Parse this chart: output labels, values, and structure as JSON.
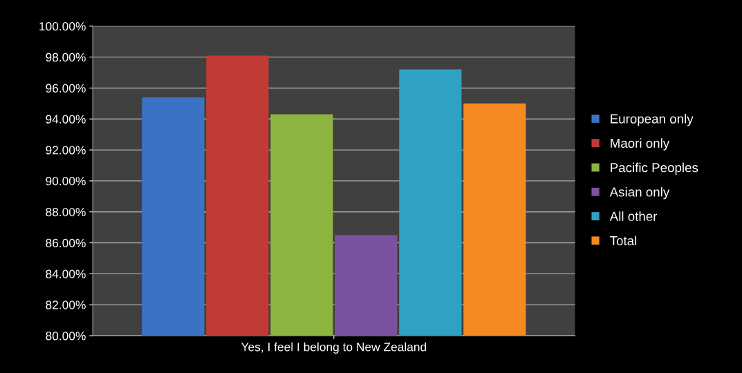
{
  "chart_data": {
    "type": "bar",
    "categories": [
      "Yes, I feel I belong to New Zealand"
    ],
    "series": [
      {
        "name": "European only",
        "color": "#3b73c4",
        "values": [
          95.4
        ]
      },
      {
        "name": "Maori only",
        "color": "#c23a36",
        "values": [
          98.1
        ]
      },
      {
        "name": "Pacific Peoples",
        "color": "#8db43e",
        "values": [
          94.3
        ]
      },
      {
        "name": "Asian only",
        "color": "#7a53a0",
        "values": [
          86.5
        ]
      },
      {
        "name": "All other",
        "color": "#2fa2c4",
        "values": [
          97.2
        ]
      },
      {
        "name": "Total",
        "color": "#f58a22",
        "values": [
          95.0
        ]
      }
    ],
    "ylim": [
      80,
      100
    ],
    "yticks": [
      {
        "value": 80,
        "label": "80.00%"
      },
      {
        "value": 82,
        "label": "82.00%"
      },
      {
        "value": 84,
        "label": "84.00%"
      },
      {
        "value": 86,
        "label": "86.00%"
      },
      {
        "value": 88,
        "label": "88.00%"
      },
      {
        "value": 90,
        "label": "90.00%"
      },
      {
        "value": 92,
        "label": "92.00%"
      },
      {
        "value": 94,
        "label": "94.00%"
      },
      {
        "value": 96,
        "label": "96.00%"
      },
      {
        "value": 98,
        "label": "98.00%"
      },
      {
        "value": 100,
        "label": "100.00%"
      }
    ],
    "grid": "y",
    "legend": "right"
  }
}
